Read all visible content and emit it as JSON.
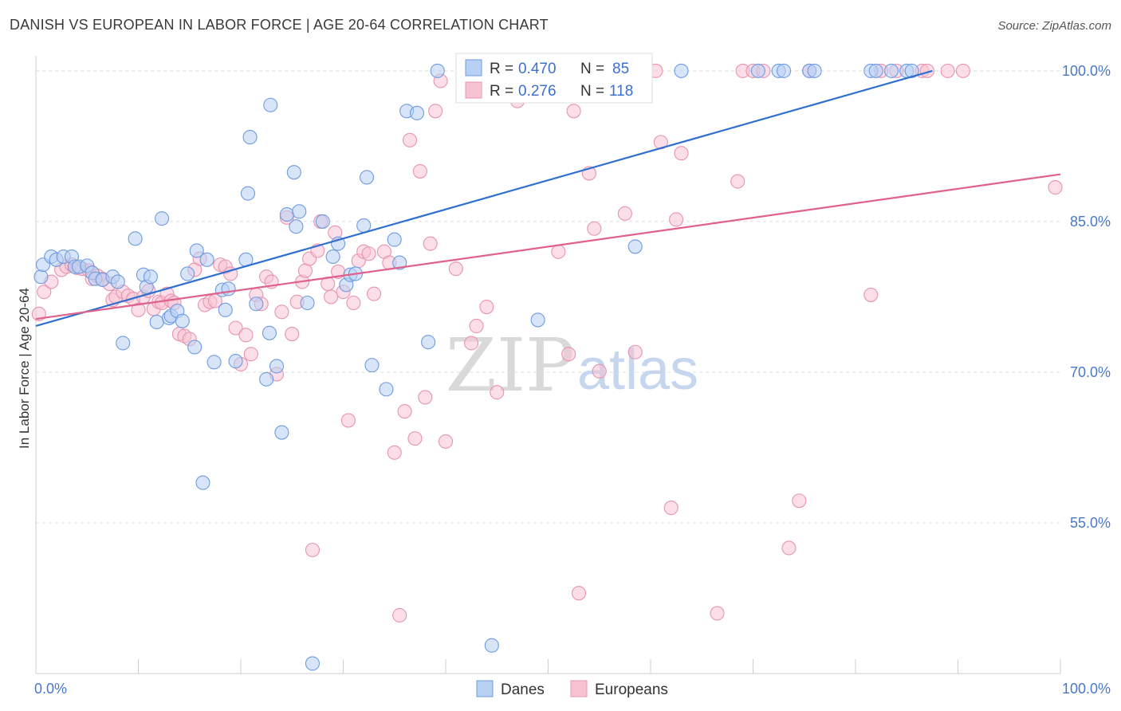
{
  "header": {
    "title": "DANISH VS EUROPEAN IN LABOR FORCE | AGE 20-64 CORRELATION CHART",
    "source": "Source: ZipAtlas.com"
  },
  "watermark": {
    "zip": "ZIP",
    "atlas": "atlas"
  },
  "colors": {
    "danes_fill": "#b8d0f4",
    "danes_stroke": "#6e9be0",
    "danes_line": "#2f6fcf",
    "europeans_fill": "#f7c3d3",
    "europeans_stroke": "#e794b0",
    "europeans_line": "#e0608c",
    "grid": "#dcdcdc",
    "axis_text": "#4a78c8"
  },
  "legend": {
    "danes": {
      "r_label": "R =",
      "r_value": "0.470",
      "n_label": "N =",
      "n_value": "85"
    },
    "europeans": {
      "r_label": "R =",
      "r_value": "0.276",
      "n_label": "N =",
      "n_value": "118"
    }
  },
  "chart_data": {
    "type": "scatter",
    "title": "DANISH VS EUROPEAN IN LABOR FORCE | AGE 20-64 CORRELATION CHART",
    "ylabel": "In Labor Force | Age 20-64",
    "xlabel": "",
    "xlim": [
      0,
      100
    ],
    "ylim": [
      40,
      101.5
    ],
    "x_tick_labels": [
      "0.0%",
      "100.0%"
    ],
    "y_ticks": [
      {
        "value": 100,
        "label": "100.0%"
      },
      {
        "value": 85,
        "label": "85.0%"
      },
      {
        "value": 70,
        "label": "70.0%"
      },
      {
        "value": 55,
        "label": "55.0%"
      }
    ],
    "grid": true,
    "legend_position": "top-center",
    "series": [
      {
        "name": "Danes",
        "trend": {
          "x0": 0,
          "y0": 74.6,
          "x1": 87.5,
          "y1": 100
        },
        "points": [
          [
            0.5,
            79.5
          ],
          [
            0.7,
            80.7
          ],
          [
            1.5,
            81.5
          ],
          [
            2.0,
            81.2
          ],
          [
            2.7,
            81.5
          ],
          [
            3.5,
            81.5
          ],
          [
            3.8,
            80.5
          ],
          [
            4.2,
            80.5
          ],
          [
            5.0,
            80.6
          ],
          [
            5.5,
            79.9
          ],
          [
            5.8,
            79.3
          ],
          [
            6.5,
            79.2
          ],
          [
            7.5,
            79.5
          ],
          [
            8.0,
            79.0
          ],
          [
            8.5,
            72.9
          ],
          [
            9.7,
            83.3
          ],
          [
            10.5,
            79.7
          ],
          [
            10.8,
            78.5
          ],
          [
            11.2,
            79.5
          ],
          [
            11.8,
            75.0
          ],
          [
            12.3,
            85.3
          ],
          [
            13.0,
            75.4
          ],
          [
            13.2,
            75.6
          ],
          [
            13.8,
            76.1
          ],
          [
            14.3,
            75.1
          ],
          [
            14.8,
            79.8
          ],
          [
            15.5,
            72.5
          ],
          [
            15.7,
            82.1
          ],
          [
            16.3,
            59.0
          ],
          [
            16.7,
            81.2
          ],
          [
            17.4,
            71.0
          ],
          [
            18.2,
            78.2
          ],
          [
            18.5,
            76.2
          ],
          [
            18.8,
            78.3
          ],
          [
            19.5,
            71.1
          ],
          [
            20.5,
            81.2
          ],
          [
            20.7,
            87.8
          ],
          [
            20.9,
            93.4
          ],
          [
            21.5,
            76.8
          ],
          [
            22.5,
            69.3
          ],
          [
            22.8,
            73.9
          ],
          [
            22.9,
            96.6
          ],
          [
            23.5,
            70.6
          ],
          [
            24.0,
            64.0
          ],
          [
            24.5,
            85.7
          ],
          [
            25.2,
            89.9
          ],
          [
            25.4,
            84.5
          ],
          [
            25.7,
            86.0
          ],
          [
            26.5,
            76.9
          ],
          [
            27.0,
            41.0
          ],
          [
            28.0,
            85.0
          ],
          [
            29.0,
            81.5
          ],
          [
            29.5,
            82.8
          ],
          [
            30.3,
            78.7
          ],
          [
            30.7,
            79.7
          ],
          [
            31.2,
            79.8
          ],
          [
            32.0,
            84.6
          ],
          [
            32.3,
            89.4
          ],
          [
            32.8,
            70.7
          ],
          [
            34.2,
            68.3
          ],
          [
            35.0,
            83.2
          ],
          [
            35.5,
            80.9
          ],
          [
            36.2,
            96.0
          ],
          [
            37.2,
            95.8
          ],
          [
            38.3,
            73.0
          ],
          [
            39.2,
            100.0
          ],
          [
            44.5,
            42.8
          ],
          [
            49.0,
            75.2
          ],
          [
            50.5,
            100.0
          ],
          [
            51.5,
            100.0
          ],
          [
            52.5,
            100.0
          ],
          [
            54.0,
            100.0
          ],
          [
            54.2,
            100.0
          ],
          [
            58.5,
            82.5
          ],
          [
            63.0,
            100.0
          ],
          [
            70.5,
            100.0
          ],
          [
            72.5,
            100.0
          ],
          [
            73.0,
            100.0
          ],
          [
            75.5,
            100.0
          ],
          [
            76.0,
            100.0
          ],
          [
            81.5,
            100.0
          ],
          [
            82.0,
            100.0
          ],
          [
            83.5,
            100.0
          ],
          [
            85.0,
            100.0
          ],
          [
            85.5,
            100.0
          ]
        ]
      },
      {
        "name": "Europeans",
        "trend": {
          "x0": 0,
          "y0": 75.3,
          "x1": 100,
          "y1": 89.7
        },
        "points": [
          [
            0.3,
            75.8
          ],
          [
            0.8,
            78.0
          ],
          [
            1.5,
            79.0
          ],
          [
            2.5,
            80.2
          ],
          [
            3.0,
            80.5
          ],
          [
            3.5,
            80.7
          ],
          [
            4.0,
            80.4
          ],
          [
            4.5,
            80.3
          ],
          [
            5.2,
            80.1
          ],
          [
            5.5,
            79.3
          ],
          [
            6.0,
            79.6
          ],
          [
            6.5,
            79.3
          ],
          [
            7.2,
            78.8
          ],
          [
            7.5,
            77.2
          ],
          [
            7.8,
            77.5
          ],
          [
            8.5,
            78.0
          ],
          [
            9.0,
            77.6
          ],
          [
            9.5,
            77.3
          ],
          [
            10.0,
            76.2
          ],
          [
            10.5,
            77.5
          ],
          [
            11.0,
            78.1
          ],
          [
            11.5,
            76.3
          ],
          [
            12.0,
            77.0
          ],
          [
            12.3,
            76.9
          ],
          [
            12.8,
            77.8
          ],
          [
            13.2,
            77.1
          ],
          [
            13.5,
            76.9
          ],
          [
            14.0,
            73.8
          ],
          [
            14.5,
            73.6
          ],
          [
            15.0,
            73.3
          ],
          [
            15.5,
            80.2
          ],
          [
            16.0,
            81.3
          ],
          [
            16.5,
            76.7
          ],
          [
            17.0,
            77.0
          ],
          [
            17.5,
            77.1
          ],
          [
            18.0,
            80.7
          ],
          [
            18.5,
            80.5
          ],
          [
            19.0,
            79.8
          ],
          [
            19.5,
            74.4
          ],
          [
            20.0,
            70.8
          ],
          [
            20.5,
            73.7
          ],
          [
            21.0,
            71.8
          ],
          [
            21.5,
            77.7
          ],
          [
            22.0,
            76.8
          ],
          [
            22.5,
            79.5
          ],
          [
            23.0,
            79.0
          ],
          [
            23.5,
            69.8
          ],
          [
            24.0,
            76.0
          ],
          [
            24.5,
            85.4
          ],
          [
            25.0,
            73.8
          ],
          [
            25.5,
            77.0
          ],
          [
            26.0,
            79.0
          ],
          [
            26.3,
            80.1
          ],
          [
            26.7,
            81.3
          ],
          [
            27.0,
            52.3
          ],
          [
            27.5,
            82.1
          ],
          [
            27.8,
            85.0
          ],
          [
            28.5,
            78.8
          ],
          [
            28.8,
            77.5
          ],
          [
            29.2,
            83.9
          ],
          [
            29.5,
            80.0
          ],
          [
            30.0,
            78.0
          ],
          [
            30.5,
            65.2
          ],
          [
            31.0,
            76.9
          ],
          [
            31.5,
            81.1
          ],
          [
            32.0,
            82.0
          ],
          [
            32.5,
            81.8
          ],
          [
            33.0,
            77.8
          ],
          [
            34.0,
            82.0
          ],
          [
            34.5,
            80.9
          ],
          [
            35.0,
            62.0
          ],
          [
            35.5,
            45.8
          ],
          [
            36.0,
            66.1
          ],
          [
            36.5,
            93.1
          ],
          [
            37.0,
            63.4
          ],
          [
            37.5,
            90.0
          ],
          [
            38.0,
            67.5
          ],
          [
            38.5,
            82.8
          ],
          [
            39.0,
            96.0
          ],
          [
            39.5,
            99.0
          ],
          [
            40.0,
            63.1
          ],
          [
            41.0,
            80.3
          ],
          [
            42.0,
            100.0
          ],
          [
            42.5,
            72.9
          ],
          [
            43.0,
            74.6
          ],
          [
            44.0,
            76.5
          ],
          [
            45.0,
            68.0
          ],
          [
            47.0,
            97.0
          ],
          [
            48.0,
            100.0
          ],
          [
            49.5,
            100.0
          ],
          [
            51.0,
            82.0
          ],
          [
            52.0,
            71.8
          ],
          [
            52.5,
            96.0
          ],
          [
            53.0,
            48.0
          ],
          [
            54.0,
            89.8
          ],
          [
            54.5,
            84.3
          ],
          [
            55.0,
            70.1
          ],
          [
            56.5,
            100.0
          ],
          [
            57.5,
            85.8
          ],
          [
            58.5,
            72.0
          ],
          [
            60.5,
            100.0
          ],
          [
            61.0,
            92.9
          ],
          [
            62.0,
            56.5
          ],
          [
            62.5,
            85.2
          ],
          [
            63.0,
            91.8
          ],
          [
            66.5,
            46.0
          ],
          [
            68.5,
            89.0
          ],
          [
            69.0,
            100.0
          ],
          [
            70.0,
            100.0
          ],
          [
            71.0,
            100.0
          ],
          [
            73.5,
            52.5
          ],
          [
            74.5,
            57.2
          ],
          [
            75.5,
            100.0
          ],
          [
            81.5,
            77.7
          ],
          [
            82.5,
            100.0
          ],
          [
            84.0,
            100.0
          ],
          [
            86.5,
            100.0
          ],
          [
            87.0,
            100.0
          ],
          [
            89.0,
            100.0
          ],
          [
            90.5,
            100.0
          ],
          [
            99.5,
            88.4
          ]
        ]
      }
    ]
  }
}
